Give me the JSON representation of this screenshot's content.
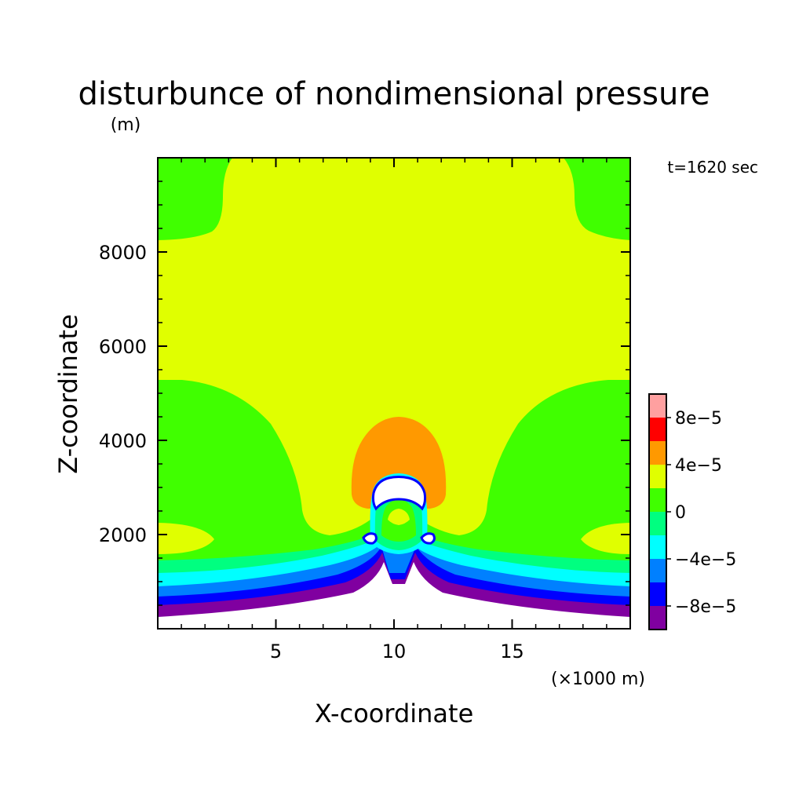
{
  "chart_data": {
    "type": "heatmap",
    "title": "disturbunce of nondimensional pressure",
    "units_label": "(m)",
    "time_label": "t=1620 sec",
    "xlabel": "X-coordinate",
    "ylabel": "Z-coordinate",
    "x_unit_label": "(×1000 m)",
    "xlim": [
      0,
      20
    ],
    "ylim": [
      0,
      10000
    ],
    "x_major_ticks": [
      5,
      10,
      15
    ],
    "x_minor_step": 1,
    "y_major_ticks": [
      2000,
      4000,
      6000,
      8000
    ],
    "y_minor_step": 500,
    "colorbar": {
      "levels": [
        -0.0001,
        -8e-05,
        -6e-05,
        -4e-05,
        -2e-05,
        0,
        2e-05,
        4e-05,
        6e-05,
        8e-05,
        0.0001
      ],
      "colors": [
        "#8000a0",
        "#0000ff",
        "#0080ff",
        "#00ffff",
        "#00ff80",
        "#40ff00",
        "#e0ff00",
        "#ff9900",
        "#ff0000",
        "#ffa0a0"
      ],
      "tick_labels": [
        {
          "value": -8e-05,
          "label": "−8e−5"
        },
        {
          "value": -4e-05,
          "label": "−4e−5"
        },
        {
          "value": 0,
          "label": "0"
        },
        {
          "value": 4e-05,
          "label": "4e−5"
        },
        {
          "value": 8e-05,
          "label": "8e−5"
        }
      ]
    },
    "regions": [
      {
        "name": "background-upper",
        "level": "2e-5 to 4e-5",
        "color": "#e0ff00"
      },
      {
        "name": "left-top-corner",
        "level": "0 to 2e-5",
        "color": "#40ff00"
      },
      {
        "name": "right-top-corner",
        "level": "0 to 2e-5",
        "color": "#40ff00"
      },
      {
        "name": "lower-band",
        "level": "0 to 2e-5",
        "color": "#40ff00"
      },
      {
        "name": "left-low-lobe",
        "level": "2e-5 to 4e-5",
        "color": "#e0ff00"
      },
      {
        "name": "right-low-lobe",
        "level": "2e-5 to 4e-5",
        "color": "#e0ff00"
      },
      {
        "name": "band-minus-2e5",
        "level": "-2e-5 to 0",
        "color": "#00ff80"
      },
      {
        "name": "band-minus-4e5",
        "level": "-4e-5 to -2e-5",
        "color": "#00ffff"
      },
      {
        "name": "band-minus-6e5",
        "level": "-6e-5 to -4e-5",
        "color": "#0080ff"
      },
      {
        "name": "band-minus-8e5",
        "level": "-8e-5 to -6e-5",
        "color": "#0000ff"
      },
      {
        "name": "band-minus-1e4",
        "level": "-1e-4 to -8e-5",
        "color": "#8000a0"
      },
      {
        "name": "below-terrain",
        "level": "undefined",
        "color": "#ffffff"
      },
      {
        "name": "orange-dome",
        "level": "4e-5 to 6e-5",
        "color": "#ff9900"
      },
      {
        "name": "core-cyan",
        "level": "-4e-5 to -2e-5",
        "color": "#00ffff"
      },
      {
        "name": "core-spring",
        "level": "-2e-5 to 0",
        "color": "#00ff80"
      },
      {
        "name": "core-green",
        "level": "0 to 2e-5",
        "color": "#40ff00"
      },
      {
        "name": "core-yellow",
        "level": "2e-5 to 4e-5",
        "color": "#e0ff00"
      },
      {
        "name": "core-white-blob",
        "level": "undefined",
        "color": "#ffffff"
      },
      {
        "name": "left-small-blob",
        "level": "undefined",
        "color": "#ffffff"
      },
      {
        "name": "right-small-blob",
        "level": "undefined",
        "color": "#ffffff"
      }
    ]
  }
}
